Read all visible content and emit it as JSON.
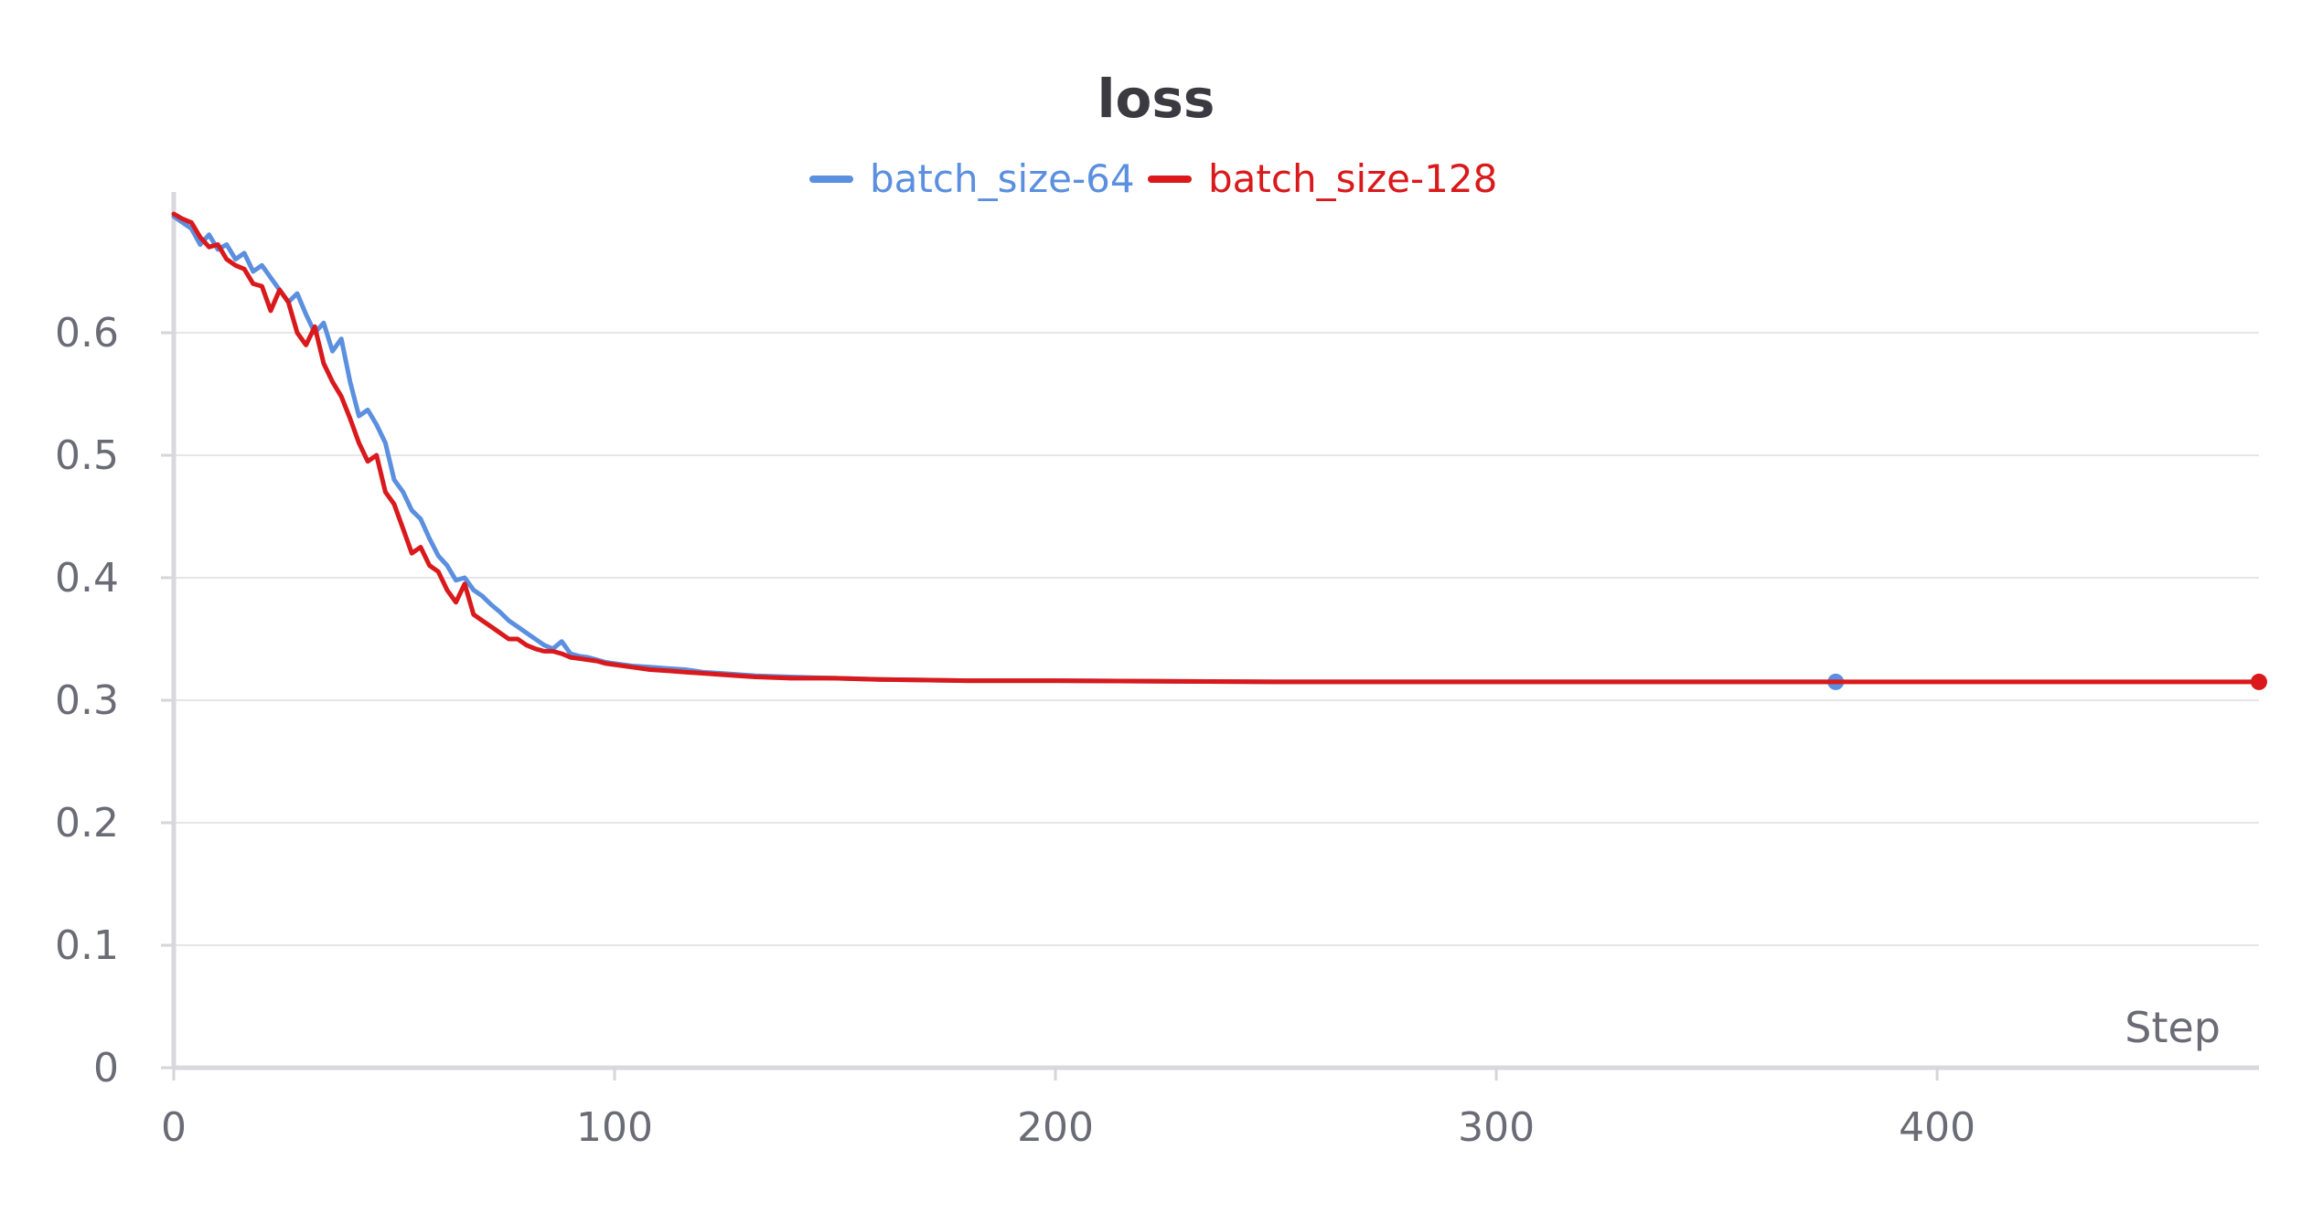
{
  "chart_data": {
    "type": "line",
    "title": "loss",
    "xlabel": "Step",
    "ylabel": "",
    "xlim": [
      0,
      473
    ],
    "ylim": [
      0,
      0.7
    ],
    "xticks": [
      0,
      100,
      200,
      300,
      400
    ],
    "yticks": [
      0,
      0.1,
      0.2,
      0.3,
      0.4,
      0.5,
      0.6
    ],
    "ytick_labels": [
      "0",
      "0.1",
      "0.2",
      "0.3",
      "0.4",
      "0.5",
      "0.6"
    ],
    "xtick_labels": [
      "0",
      "100",
      "200",
      "300",
      "400"
    ],
    "grid": true,
    "legend_position": "top-center",
    "series": [
      {
        "name": "batch_size-64",
        "color": "#5b8fdf",
        "points": [
          [
            0,
            0.695
          ],
          [
            2,
            0.69
          ],
          [
            4,
            0.685
          ],
          [
            6,
            0.672
          ],
          [
            8,
            0.68
          ],
          [
            10,
            0.668
          ],
          [
            12,
            0.672
          ],
          [
            14,
            0.66
          ],
          [
            16,
            0.665
          ],
          [
            18,
            0.65
          ],
          [
            20,
            0.655
          ],
          [
            22,
            0.645
          ],
          [
            24,
            0.635
          ],
          [
            26,
            0.625
          ],
          [
            28,
            0.632
          ],
          [
            30,
            0.615
          ],
          [
            32,
            0.6
          ],
          [
            34,
            0.608
          ],
          [
            36,
            0.585
          ],
          [
            38,
            0.595
          ],
          [
            40,
            0.56
          ],
          [
            42,
            0.532
          ],
          [
            44,
            0.537
          ],
          [
            46,
            0.525
          ],
          [
            48,
            0.51
          ],
          [
            50,
            0.48
          ],
          [
            52,
            0.47
          ],
          [
            54,
            0.455
          ],
          [
            56,
            0.448
          ],
          [
            58,
            0.432
          ],
          [
            60,
            0.418
          ],
          [
            62,
            0.41
          ],
          [
            64,
            0.398
          ],
          [
            66,
            0.4
          ],
          [
            68,
            0.39
          ],
          [
            70,
            0.385
          ],
          [
            72,
            0.378
          ],
          [
            74,
            0.372
          ],
          [
            76,
            0.365
          ],
          [
            78,
            0.36
          ],
          [
            80,
            0.355
          ],
          [
            82,
            0.35
          ],
          [
            84,
            0.345
          ],
          [
            86,
            0.342
          ],
          [
            88,
            0.348
          ],
          [
            90,
            0.338
          ],
          [
            92,
            0.336
          ],
          [
            94,
            0.335
          ],
          [
            96,
            0.333
          ],
          [
            98,
            0.331
          ],
          [
            100,
            0.33
          ],
          [
            104,
            0.328
          ],
          [
            108,
            0.327
          ],
          [
            112,
            0.326
          ],
          [
            116,
            0.325
          ],
          [
            120,
            0.323
          ],
          [
            124,
            0.322
          ],
          [
            128,
            0.321
          ],
          [
            132,
            0.32
          ],
          [
            140,
            0.319
          ],
          [
            150,
            0.318
          ],
          [
            160,
            0.317
          ],
          [
            180,
            0.316
          ],
          [
            200,
            0.316
          ],
          [
            250,
            0.315
          ],
          [
            300,
            0.315
          ],
          [
            350,
            0.315
          ],
          [
            377,
            0.315
          ]
        ]
      },
      {
        "name": "batch_size-128",
        "color": "#d9191c",
        "points": [
          [
            0,
            0.697
          ],
          [
            2,
            0.693
          ],
          [
            4,
            0.69
          ],
          [
            6,
            0.678
          ],
          [
            8,
            0.67
          ],
          [
            10,
            0.672
          ],
          [
            12,
            0.66
          ],
          [
            14,
            0.655
          ],
          [
            16,
            0.652
          ],
          [
            18,
            0.64
          ],
          [
            20,
            0.638
          ],
          [
            22,
            0.618
          ],
          [
            24,
            0.635
          ],
          [
            26,
            0.625
          ],
          [
            28,
            0.6
          ],
          [
            30,
            0.59
          ],
          [
            32,
            0.605
          ],
          [
            34,
            0.575
          ],
          [
            36,
            0.56
          ],
          [
            38,
            0.548
          ],
          [
            40,
            0.53
          ],
          [
            42,
            0.51
          ],
          [
            44,
            0.495
          ],
          [
            46,
            0.5
          ],
          [
            48,
            0.47
          ],
          [
            50,
            0.46
          ],
          [
            52,
            0.44
          ],
          [
            54,
            0.42
          ],
          [
            56,
            0.425
          ],
          [
            58,
            0.41
          ],
          [
            60,
            0.405
          ],
          [
            62,
            0.39
          ],
          [
            64,
            0.38
          ],
          [
            66,
            0.395
          ],
          [
            68,
            0.37
          ],
          [
            70,
            0.365
          ],
          [
            72,
            0.36
          ],
          [
            74,
            0.355
          ],
          [
            76,
            0.35
          ],
          [
            78,
            0.35
          ],
          [
            80,
            0.345
          ],
          [
            82,
            0.342
          ],
          [
            84,
            0.34
          ],
          [
            86,
            0.34
          ],
          [
            88,
            0.338
          ],
          [
            90,
            0.335
          ],
          [
            92,
            0.334
          ],
          [
            94,
            0.333
          ],
          [
            96,
            0.332
          ],
          [
            98,
            0.33
          ],
          [
            100,
            0.329
          ],
          [
            104,
            0.327
          ],
          [
            108,
            0.325
          ],
          [
            112,
            0.324
          ],
          [
            116,
            0.323
          ],
          [
            120,
            0.322
          ],
          [
            124,
            0.321
          ],
          [
            128,
            0.32
          ],
          [
            132,
            0.319
          ],
          [
            140,
            0.318
          ],
          [
            150,
            0.318
          ],
          [
            160,
            0.317
          ],
          [
            180,
            0.316
          ],
          [
            200,
            0.316
          ],
          [
            250,
            0.315
          ],
          [
            300,
            0.315
          ],
          [
            350,
            0.315
          ],
          [
            400,
            0.315
          ],
          [
            450,
            0.315
          ],
          [
            473,
            0.315
          ]
        ]
      }
    ]
  }
}
